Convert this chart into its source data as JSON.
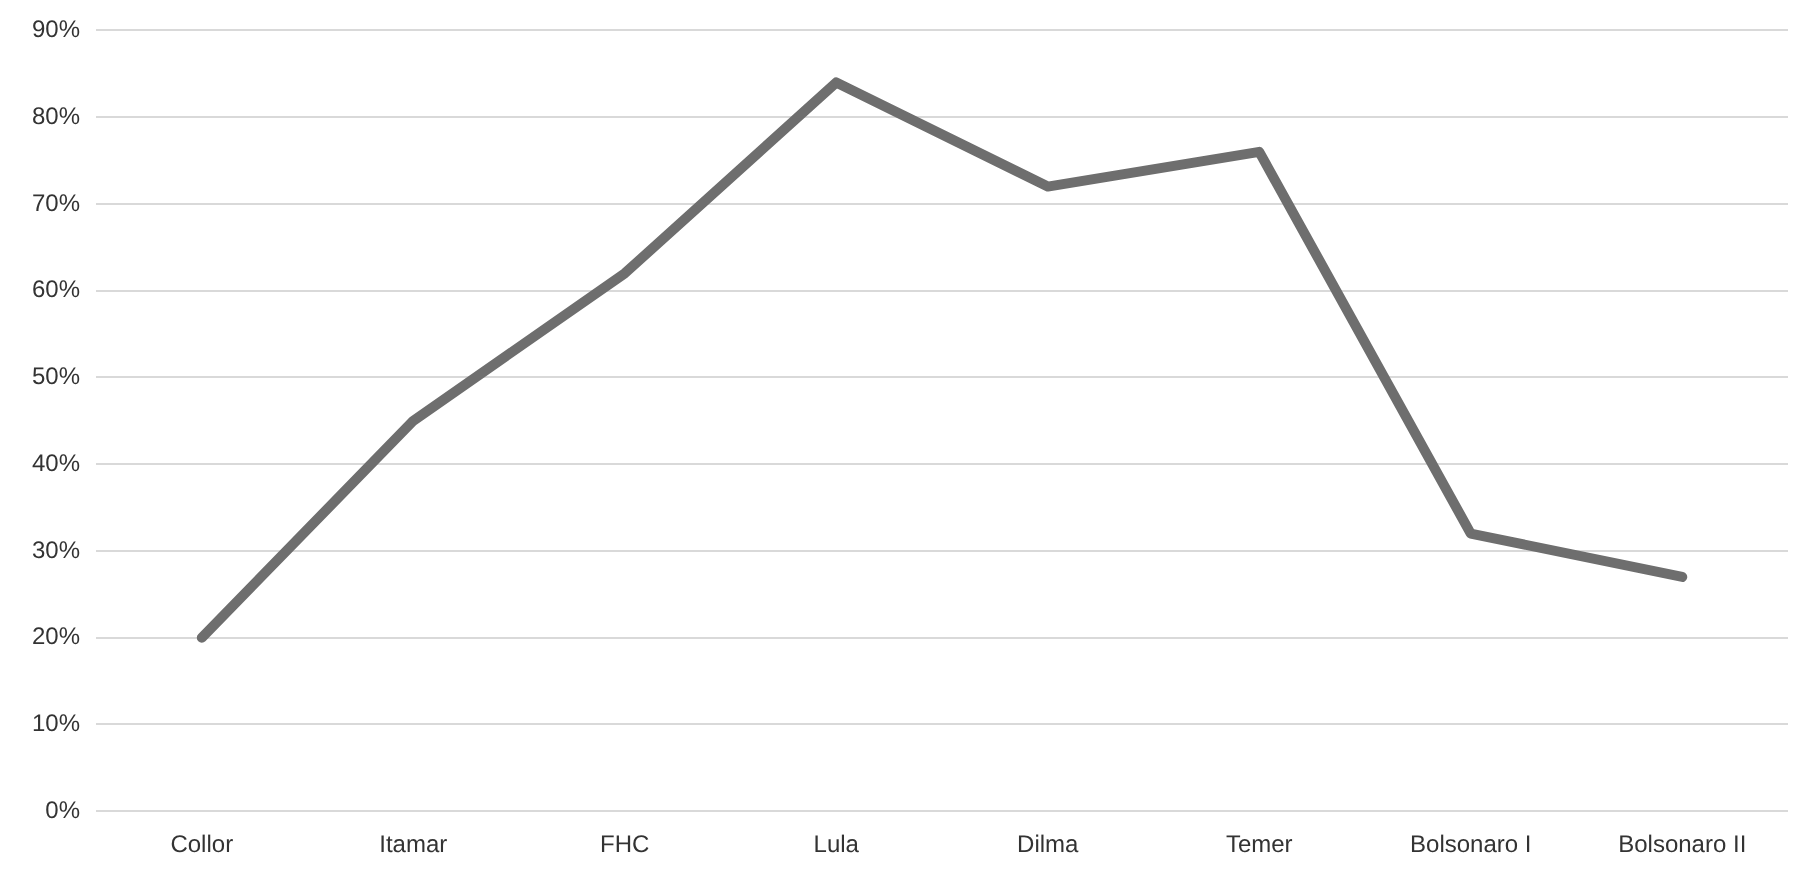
{
  "chart_data": {
    "type": "line",
    "categories": [
      "Collor",
      "Itamar",
      "FHC",
      "Lula",
      "Dilma",
      "Temer",
      "Bolsonaro I",
      "Bolsonaro II"
    ],
    "series": [
      {
        "color": "#6e6e6e",
        "values": [
          20,
          45,
          62,
          84,
          72,
          76,
          32,
          27
        ]
      }
    ],
    "ylim": [
      0,
      90
    ],
    "yticks": [
      {
        "value": 0,
        "label": "0%"
      },
      {
        "value": 10,
        "label": "10%"
      },
      {
        "value": 20,
        "label": "20%"
      },
      {
        "value": 30,
        "label": "30%"
      },
      {
        "value": 40,
        "label": "40%"
      },
      {
        "value": 50,
        "label": "50%"
      },
      {
        "value": 60,
        "label": "60%"
      },
      {
        "value": 70,
        "label": "70%"
      },
      {
        "value": 80,
        "label": "80%"
      },
      {
        "value": 90,
        "label": "90%"
      }
    ],
    "grid": "y",
    "legend": false,
    "marker": "none",
    "line_style": "solid"
  }
}
